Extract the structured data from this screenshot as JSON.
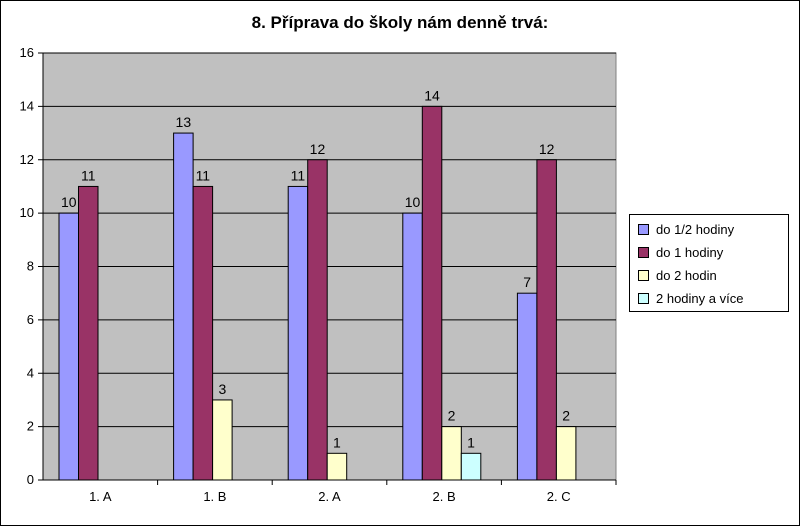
{
  "chart_data": {
    "type": "bar",
    "title": "8. Příprava do školy nám denně trvá:",
    "categories": [
      "1. A",
      "1. B",
      "2. A",
      "2. B",
      "2. C"
    ],
    "series": [
      {
        "name": "do 1/2 hodiny",
        "color": "#9999ff",
        "values": [
          10,
          13,
          11,
          10,
          7
        ]
      },
      {
        "name": "do 1 hodiny",
        "color": "#993366",
        "values": [
          11,
          11,
          12,
          14,
          12
        ]
      },
      {
        "name": "do 2 hodin",
        "color": "#ffffcc",
        "values": [
          null,
          3,
          1,
          2,
          2
        ]
      },
      {
        "name": "2 hodiny a více",
        "color": "#ccffff",
        "values": [
          null,
          null,
          null,
          1,
          null
        ]
      }
    ],
    "ylim": [
      0,
      16
    ],
    "yticks": [
      0,
      2,
      4,
      6,
      8,
      10,
      12,
      14,
      16
    ],
    "grid": true,
    "plot_background": "#c0c0c0",
    "legend_position": "right"
  }
}
